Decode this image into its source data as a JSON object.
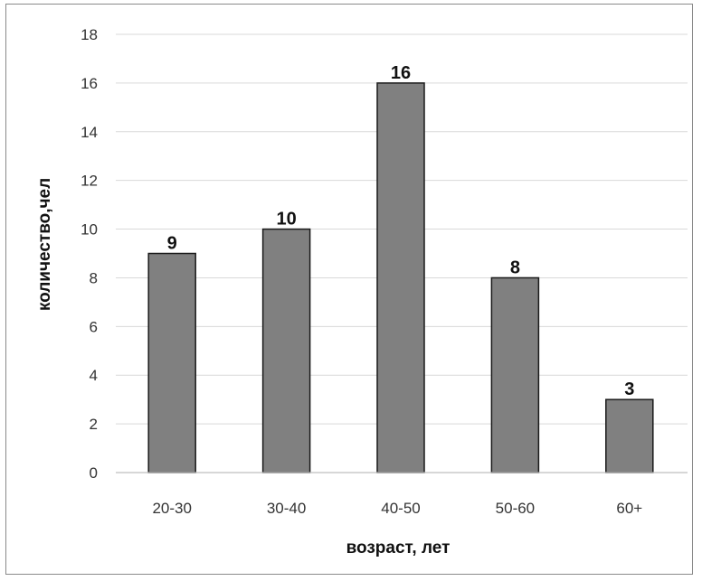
{
  "chart_data": {
    "type": "bar",
    "categories": [
      "20-30",
      "30-40",
      "40-50",
      "50-60",
      "60+"
    ],
    "values": [
      9,
      10,
      16,
      8,
      3
    ],
    "xlabel": "возраст, лет",
    "ylabel": "количество,чел",
    "ylim": [
      0,
      18
    ],
    "yticks": [
      0,
      2,
      4,
      6,
      8,
      10,
      12,
      14,
      16,
      18
    ],
    "grid": true,
    "legend": "none",
    "bar_color": "#808080",
    "bar_edge_color": "#1a1a1a",
    "grid_color": "#d9d9d9"
  }
}
